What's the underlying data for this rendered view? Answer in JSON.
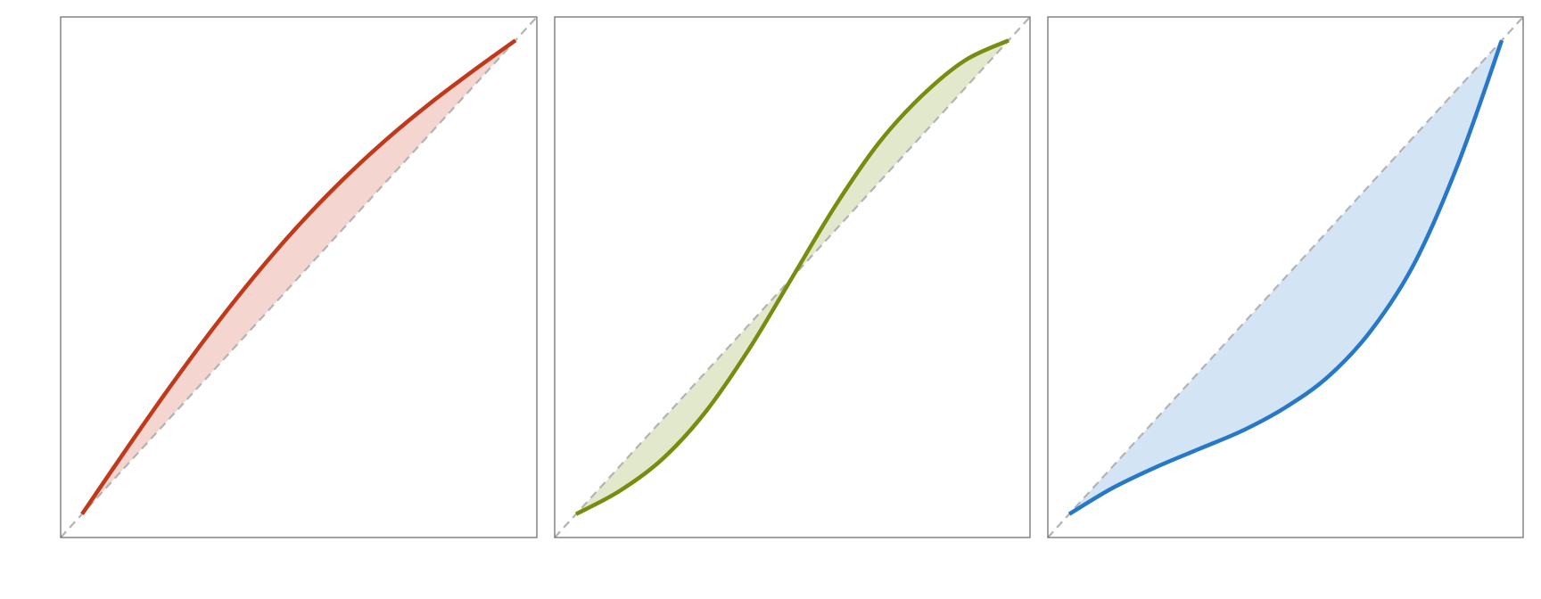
{
  "chart_data": [
    {
      "type": "line",
      "color": "#c0391b",
      "fill_color": "#f4d5cf",
      "diagonal": true,
      "xlim": [
        0,
        1
      ],
      "ylim": [
        0,
        1
      ],
      "x": [
        0.045,
        0.136,
        0.227,
        0.318,
        0.409,
        0.5,
        0.591,
        0.682,
        0.773,
        0.864,
        0.955
      ],
      "values": [
        0.045,
        0.167,
        0.286,
        0.399,
        0.504,
        0.6,
        0.686,
        0.763,
        0.832,
        0.895,
        0.955
      ]
    },
    {
      "type": "line",
      "color": "#7a8c10",
      "fill_color": "#e2e8cc",
      "diagonal": true,
      "xlim": [
        0,
        1
      ],
      "ylim": [
        0,
        1
      ],
      "x": [
        0.045,
        0.136,
        0.227,
        0.318,
        0.409,
        0.5,
        0.591,
        0.682,
        0.773,
        0.864,
        0.955
      ],
      "values": [
        0.045,
        0.089,
        0.151,
        0.242,
        0.362,
        0.5,
        0.638,
        0.758,
        0.849,
        0.917,
        0.955
      ]
    },
    {
      "type": "line",
      "color": "#2878c8",
      "fill_color": "#d3e4f5",
      "diagonal": true,
      "xlim": [
        0,
        1
      ],
      "ylim": [
        0,
        1
      ],
      "x": [
        0.045,
        0.136,
        0.227,
        0.318,
        0.409,
        0.5,
        0.591,
        0.682,
        0.773,
        0.864,
        0.955
      ],
      "values": [
        0.045,
        0.095,
        0.135,
        0.17,
        0.205,
        0.25,
        0.31,
        0.4,
        0.53,
        0.72,
        0.955
      ]
    }
  ]
}
